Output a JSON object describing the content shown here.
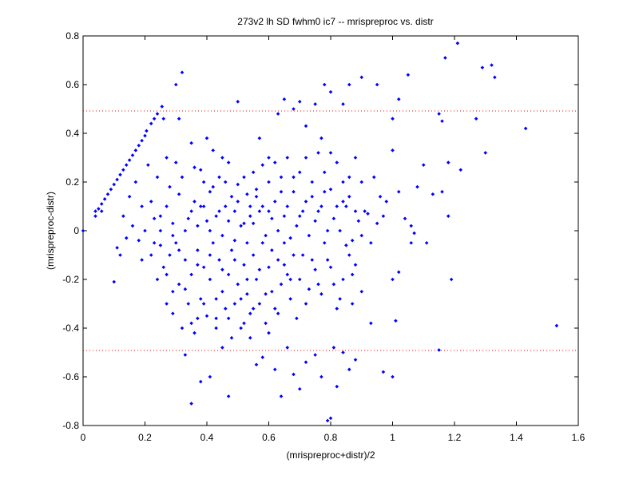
{
  "chart_data": {
    "type": "scatter",
    "title": "273v2 lh SD fwhm0 ic7 -- mrispreproc vs. distr",
    "xlabel": "(mrispreproc+distr)/2",
    "ylabel": "(mrispreproc-distr)",
    "xlim": [
      0,
      1.6
    ],
    "ylim": [
      -0.8,
      0.8
    ],
    "xticks": [
      "0",
      "0.2",
      "0.4",
      "0.6",
      "0.8",
      "1",
      "1.2",
      "1.4",
      "1.6"
    ],
    "yticks": [
      "0.8",
      "0.6",
      "0.4",
      "0.2",
      "0",
      "-0.2",
      "-0.4",
      "-0.6",
      "-0.8"
    ],
    "grid": false,
    "reference_lines": [
      0.492,
      -0.492
    ],
    "colors": {
      "points": "#0000ff",
      "reference_lines": "#ff0000",
      "axes": "#000000"
    },
    "points": [
      [
        0.04,
        0.08
      ],
      [
        0.05,
        0.09
      ],
      [
        0.06,
        0.11
      ],
      [
        0.07,
        0.13
      ],
      [
        0.08,
        0.15
      ],
      [
        0.09,
        0.17
      ],
      [
        0.1,
        0.19
      ],
      [
        0.11,
        0.21
      ],
      [
        0.12,
        0.23
      ],
      [
        0.13,
        0.25
      ],
      [
        0.14,
        0.27
      ],
      [
        0.15,
        0.29
      ],
      [
        0.16,
        0.31
      ],
      [
        0.17,
        0.33
      ],
      [
        0.18,
        0.35
      ],
      [
        0.19,
        0.37
      ],
      [
        0.2,
        0.39
      ],
      [
        0.205,
        0.41
      ],
      [
        0.22,
        0.44
      ],
      [
        0.23,
        0.46
      ],
      [
        0.24,
        0.48
      ],
      [
        0.255,
        0.51
      ],
      [
        0.0,
        0.0
      ],
      [
        0.04,
        0.06
      ],
      [
        0.06,
        0.08
      ],
      [
        0.1,
        -0.21
      ],
      [
        0.12,
        -0.1
      ],
      [
        0.11,
        -0.07
      ],
      [
        0.13,
        0.06
      ],
      [
        0.15,
        0.14
      ],
      [
        0.17,
        0.2
      ],
      [
        0.16,
        0.02
      ],
      [
        0.18,
        -0.04
      ],
      [
        0.14,
        -0.03
      ],
      [
        0.19,
        0.1
      ],
      [
        0.21,
        0.27
      ],
      [
        0.22,
        0.12
      ],
      [
        0.2,
        0.0
      ],
      [
        0.19,
        -0.12
      ],
      [
        0.23,
        -0.05
      ],
      [
        0.24,
        0.22
      ],
      [
        0.25,
        0.06
      ],
      [
        0.26,
        0.46
      ],
      [
        0.27,
        0.3
      ],
      [
        0.28,
        0.18
      ],
      [
        0.29,
        -0.02
      ],
      [
        0.3,
        0.6
      ],
      [
        0.31,
        0.46
      ],
      [
        0.32,
        0.65
      ],
      [
        0.33,
        -0.51
      ],
      [
        0.35,
        -0.71
      ],
      [
        0.37,
        -0.36
      ],
      [
        0.38,
        -0.62
      ],
      [
        0.41,
        -0.6
      ],
      [
        0.43,
        -0.36
      ],
      [
        0.45,
        -0.48
      ],
      [
        0.47,
        -0.68
      ],
      [
        0.5,
        0.53
      ],
      [
        0.48,
        -0.44
      ],
      [
        0.52,
        -0.38
      ],
      [
        0.54,
        -0.44
      ],
      [
        0.56,
        -0.55
      ],
      [
        0.58,
        -0.52
      ],
      [
        0.6,
        -0.42
      ],
      [
        0.62,
        -0.57
      ],
      [
        0.64,
        -0.68
      ],
      [
        0.66,
        -0.48
      ],
      [
        0.68,
        -0.59
      ],
      [
        0.7,
        -0.65
      ],
      [
        0.72,
        -0.54
      ],
      [
        0.75,
        -0.51
      ],
      [
        0.77,
        -0.6
      ],
      [
        0.79,
        -0.78
      ],
      [
        0.8,
        -0.77
      ],
      [
        0.81,
        -0.48
      ],
      [
        0.82,
        -0.64
      ],
      [
        0.84,
        -0.5
      ],
      [
        0.86,
        -0.57
      ],
      [
        0.88,
        -0.53
      ],
      [
        0.78,
        0.6
      ],
      [
        0.8,
        0.57
      ],
      [
        0.84,
        0.52
      ],
      [
        0.86,
        0.6
      ],
      [
        0.9,
        0.63
      ],
      [
        0.95,
        0.6
      ],
      [
        0.77,
        0.38
      ],
      [
        0.72,
        0.43
      ],
      [
        0.75,
        0.52
      ],
      [
        0.7,
        0.53
      ],
      [
        0.68,
        0.5
      ],
      [
        0.65,
        0.54
      ],
      [
        0.63,
        0.48
      ],
      [
        0.6,
        0.3
      ],
      [
        0.57,
        0.38
      ],
      [
        0.55,
        0.24
      ],
      [
        0.38,
        0.25
      ],
      [
        0.4,
        0.38
      ],
      [
        0.42,
        0.33
      ],
      [
        0.45,
        0.3
      ],
      [
        0.47,
        0.28
      ],
      [
        0.5,
        0.19
      ],
      [
        0.53,
        0.15
      ],
      [
        0.35,
        0.36
      ],
      [
        0.36,
        0.12
      ],
      [
        0.39,
        0.2
      ],
      [
        0.41,
        0.16
      ],
      [
        0.44,
        0.22
      ],
      [
        0.46,
        0.1
      ],
      [
        0.49,
        0.08
      ],
      [
        0.52,
        0.03
      ],
      [
        0.54,
        0.1
      ],
      [
        0.56,
        0.17
      ],
      [
        0.58,
        0.27
      ],
      [
        0.6,
        0.2
      ],
      [
        0.62,
        0.12
      ],
      [
        0.64,
        0.22
      ],
      [
        0.66,
        0.3
      ],
      [
        0.68,
        0.16
      ],
      [
        0.7,
        0.24
      ],
      [
        0.72,
        0.12
      ],
      [
        0.74,
        0.2
      ],
      [
        0.76,
        0.32
      ],
      [
        0.78,
        0.24
      ],
      [
        0.8,
        0.17
      ],
      [
        0.82,
        0.28
      ],
      [
        0.84,
        0.12
      ],
      [
        0.86,
        0.22
      ],
      [
        0.88,
        0.3
      ],
      [
        0.9,
        0.2
      ],
      [
        0.92,
        0.07
      ],
      [
        0.94,
        0.22
      ],
      [
        0.96,
        0.14
      ],
      [
        0.98,
        0.12
      ],
      [
        1.0,
        0.33
      ],
      [
        1.02,
        0.16
      ],
      [
        1.04,
        0.05
      ],
      [
        1.06,
        0.02
      ],
      [
        1.08,
        0.18
      ],
      [
        1.1,
        0.27
      ],
      [
        1.0,
        0.46
      ],
      [
        1.02,
        0.54
      ],
      [
        1.05,
        0.64
      ],
      [
        1.15,
        0.48
      ],
      [
        1.16,
        0.45
      ],
      [
        1.17,
        0.71
      ],
      [
        1.21,
        0.77
      ],
      [
        1.29,
        0.67
      ],
      [
        1.32,
        0.68
      ],
      [
        1.33,
        0.63
      ],
      [
        1.27,
        0.46
      ],
      [
        1.3,
        0.32
      ],
      [
        1.22,
        0.25
      ],
      [
        1.18,
        0.28
      ],
      [
        1.16,
        0.16
      ],
      [
        1.18,
        0.06
      ],
      [
        1.13,
        0.15
      ],
      [
        1.11,
        -0.05
      ],
      [
        1.07,
        -0.01
      ],
      [
        1.06,
        -0.05
      ],
      [
        1.02,
        -0.17
      ],
      [
        1.0,
        -0.2
      ],
      [
        0.97,
        -0.58
      ],
      [
        1.0,
        -0.6
      ],
      [
        1.01,
        -0.37
      ],
      [
        0.93,
        -0.38
      ],
      [
        0.9,
        -0.25
      ],
      [
        0.87,
        -0.3
      ],
      [
        1.15,
        -0.49
      ],
      [
        1.19,
        -0.2
      ],
      [
        1.43,
        0.42
      ],
      [
        1.53,
        -0.39
      ],
      [
        0.22,
        -0.1
      ],
      [
        0.24,
        -0.2
      ],
      [
        0.26,
        -0.15
      ],
      [
        0.27,
        -0.3
      ],
      [
        0.28,
        -0.1
      ],
      [
        0.29,
        -0.25
      ],
      [
        0.3,
        -0.05
      ],
      [
        0.31,
        -0.22
      ],
      [
        0.32,
        -0.4
      ],
      [
        0.33,
        -0.12
      ],
      [
        0.34,
        -0.3
      ],
      [
        0.35,
        -0.18
      ],
      [
        0.36,
        -0.42
      ],
      [
        0.37,
        -0.08
      ],
      [
        0.38,
        -0.28
      ],
      [
        0.39,
        -0.15
      ],
      [
        0.4,
        -0.35
      ],
      [
        0.41,
        -0.2
      ],
      [
        0.42,
        -0.05
      ],
      [
        0.43,
        -0.4
      ],
      [
        0.44,
        -0.12
      ],
      [
        0.45,
        -0.25
      ],
      [
        0.46,
        -0.32
      ],
      [
        0.47,
        -0.18
      ],
      [
        0.48,
        -0.08
      ],
      [
        0.49,
        -0.3
      ],
      [
        0.5,
        -0.22
      ],
      [
        0.51,
        -0.4
      ],
      [
        0.52,
        -0.14
      ],
      [
        0.53,
        -0.26
      ],
      [
        0.54,
        -0.34
      ],
      [
        0.55,
        -0.1
      ],
      [
        0.56,
        -0.2
      ],
      [
        0.57,
        -0.3
      ],
      [
        0.58,
        -0.05
      ],
      [
        0.59,
        -0.38
      ],
      [
        0.6,
        -0.15
      ],
      [
        0.61,
        -0.25
      ],
      [
        0.62,
        -0.32
      ],
      [
        0.63,
        -0.12
      ],
      [
        0.64,
        -0.22
      ],
      [
        0.65,
        -0.05
      ],
      [
        0.66,
        -0.18
      ],
      [
        0.67,
        -0.28
      ],
      [
        0.68,
        -0.1
      ],
      [
        0.7,
        -0.2
      ],
      [
        0.72,
        -0.3
      ],
      [
        0.74,
        -0.12
      ],
      [
        0.76,
        -0.22
      ],
      [
        0.78,
        -0.05
      ],
      [
        0.8,
        -0.15
      ],
      [
        0.82,
        -0.32
      ],
      [
        0.84,
        -0.2
      ],
      [
        0.86,
        -0.1
      ],
      [
        0.88,
        -0.14
      ],
      [
        0.9,
        -0.02
      ],
      [
        0.23,
        0.05
      ],
      [
        0.25,
        0.0
      ],
      [
        0.27,
        0.1
      ],
      [
        0.29,
        0.03
      ],
      [
        0.31,
        0.15
      ],
      [
        0.33,
        0.0
      ],
      [
        0.35,
        0.08
      ],
      [
        0.37,
        0.02
      ],
      [
        0.39,
        0.1
      ],
      [
        0.41,
        0.0
      ],
      [
        0.43,
        0.06
      ],
      [
        0.45,
        -0.02
      ],
      [
        0.47,
        0.04
      ],
      [
        0.49,
        -0.04
      ],
      [
        0.51,
        0.02
      ],
      [
        0.53,
        -0.05
      ],
      [
        0.55,
        0.03
      ],
      [
        0.57,
        0.08
      ],
      [
        0.59,
        -0.02
      ],
      [
        0.61,
        0.05
      ],
      [
        0.63,
        0.0
      ],
      [
        0.65,
        0.06
      ],
      [
        0.67,
        -0.03
      ],
      [
        0.69,
        0.02
      ],
      [
        0.71,
        0.08
      ],
      [
        0.73,
        -0.02
      ],
      [
        0.75,
        0.04
      ],
      [
        0.77,
        0.1
      ],
      [
        0.79,
        0.0
      ],
      [
        0.81,
        0.05
      ],
      [
        0.83,
        0.0
      ],
      [
        0.85,
        0.1
      ],
      [
        0.87,
        -0.04
      ],
      [
        0.89,
        0.04
      ],
      [
        0.91,
        0.08
      ],
      [
        0.93,
        -0.05
      ],
      [
        0.95,
        0.03
      ],
      [
        0.97,
        0.06
      ],
      [
        0.3,
        0.28
      ],
      [
        0.32,
        0.22
      ],
      [
        0.34,
        0.05
      ],
      [
        0.36,
        0.26
      ],
      [
        0.38,
        0.1
      ],
      [
        0.4,
        0.04
      ],
      [
        0.42,
        0.18
      ],
      [
        0.44,
        0.08
      ],
      [
        0.46,
        0.2
      ],
      [
        0.48,
        0.14
      ],
      [
        0.5,
        0.12
      ],
      [
        0.52,
        0.22
      ],
      [
        0.54,
        0.06
      ],
      [
        0.56,
        0.14
      ],
      [
        0.58,
        0.1
      ],
      [
        0.6,
        0.08
      ],
      [
        0.62,
        0.28
      ],
      [
        0.64,
        0.16
      ],
      [
        0.66,
        0.1
      ],
      [
        0.68,
        0.22
      ],
      [
        0.7,
        0.06
      ],
      [
        0.72,
        0.3
      ],
      [
        0.74,
        0.14
      ],
      [
        0.76,
        0.08
      ],
      [
        0.78,
        0.16
      ],
      [
        0.8,
        0.32
      ],
      [
        0.82,
        0.1
      ],
      [
        0.84,
        0.2
      ],
      [
        0.86,
        0.14
      ],
      [
        0.88,
        0.08
      ],
      [
        0.25,
        -0.06
      ],
      [
        0.27,
        -0.18
      ],
      [
        0.29,
        -0.34
      ],
      [
        0.31,
        -0.08
      ],
      [
        0.33,
        -0.24
      ],
      [
        0.35,
        -0.38
      ],
      [
        0.37,
        -0.14
      ],
      [
        0.39,
        -0.3
      ],
      [
        0.41,
        -0.1
      ],
      [
        0.43,
        -0.28
      ],
      [
        0.45,
        -0.16
      ],
      [
        0.47,
        -0.36
      ],
      [
        0.49,
        -0.12
      ],
      [
        0.51,
        -0.28
      ],
      [
        0.53,
        -0.2
      ],
      [
        0.55,
        -0.32
      ],
      [
        0.57,
        -0.16
      ],
      [
        0.59,
        -0.26
      ],
      [
        0.61,
        -0.08
      ],
      [
        0.63,
        -0.34
      ],
      [
        0.65,
        -0.14
      ],
      [
        0.67,
        -0.2
      ],
      [
        0.69,
        -0.36
      ],
      [
        0.71,
        -0.1
      ],
      [
        0.73,
        -0.24
      ],
      [
        0.75,
        -0.16
      ],
      [
        0.77,
        -0.26
      ],
      [
        0.79,
        -0.12
      ],
      [
        0.81,
        -0.22
      ],
      [
        0.83,
        -0.28
      ],
      [
        0.85,
        -0.06
      ],
      [
        0.87,
        -0.18
      ]
    ]
  }
}
